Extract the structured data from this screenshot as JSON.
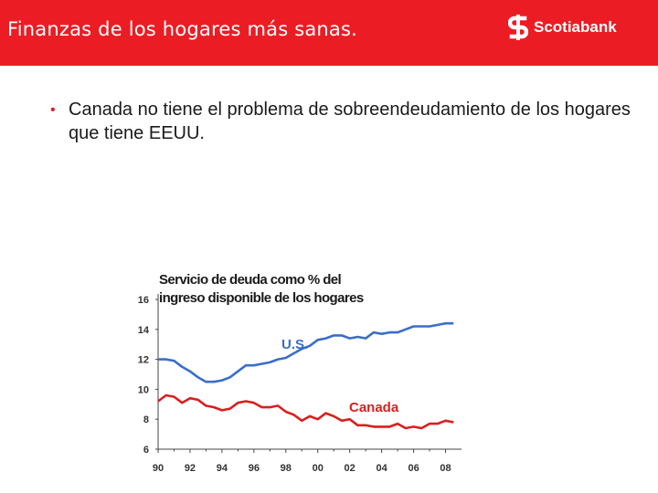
{
  "header": {
    "title": "Finanzas de los hogares más sanas.",
    "brand": "Scotiabank",
    "brand_icon": "scotiabank-logo-icon",
    "background_color": "#ec1c24"
  },
  "bullet": {
    "text": "Canada no tiene el problema de sobreendeudamiento de los hogares que tiene EEUU."
  },
  "chart_data": {
    "type": "line",
    "title_lines": [
      "Servicio de deuda como % del",
      "ingreso disponible de los hogares"
    ],
    "xlabel": "",
    "ylabel": "",
    "xlim": [
      1990,
      2009
    ],
    "ylim": [
      6,
      16
    ],
    "x_ticks": [
      1990,
      1992,
      1994,
      1996,
      1998,
      2000,
      2002,
      2004,
      2006,
      2008
    ],
    "x_tick_labels": [
      "90",
      "92",
      "94",
      "96",
      "98",
      "00",
      "02",
      "04",
      "06",
      "08"
    ],
    "y_ticks": [
      6,
      8,
      10,
      12,
      14,
      16
    ],
    "y_tick_labels": [
      "6",
      "8",
      "10",
      "12",
      "14",
      "16"
    ],
    "grid": false,
    "series": [
      {
        "name": "U.S.",
        "color": "#3a6ec8",
        "x": [
          1990,
          1990.5,
          1991,
          1991.5,
          1992,
          1992.5,
          1993,
          1993.5,
          1994,
          1994.5,
          1995,
          1995.5,
          1996,
          1996.5,
          1997,
          1997.5,
          1998,
          1998.5,
          1999,
          1999.5,
          2000,
          2000.5,
          2001,
          2001.5,
          2002,
          2002.5,
          2003,
          2003.5,
          2004,
          2004.5,
          2005,
          2005.5,
          2006,
          2006.5,
          2007,
          2007.5,
          2008,
          2008.5
        ],
        "values": [
          12.0,
          12.0,
          11.9,
          11.5,
          11.2,
          10.8,
          10.5,
          10.5,
          10.6,
          10.8,
          11.2,
          11.6,
          11.6,
          11.7,
          11.8,
          12.0,
          12.1,
          12.4,
          12.7,
          12.9,
          13.3,
          13.4,
          13.6,
          13.6,
          13.4,
          13.5,
          13.4,
          13.8,
          13.7,
          13.8,
          13.8,
          14.0,
          14.2,
          14.2,
          14.2,
          14.3,
          14.4,
          14.4
        ]
      },
      {
        "name": "Canada",
        "color": "#d91f1f",
        "x": [
          1990,
          1990.5,
          1991,
          1991.5,
          1992,
          1992.5,
          1993,
          1993.5,
          1994,
          1994.5,
          1995,
          1995.5,
          1996,
          1996.5,
          1997,
          1997.5,
          1998,
          1998.5,
          1999,
          1999.5,
          2000,
          2000.5,
          2001,
          2001.5,
          2002,
          2002.5,
          2003,
          2003.5,
          2004,
          2004.5,
          2005,
          2005.5,
          2006,
          2006.5,
          2007,
          2007.5,
          2008,
          2008.5
        ],
        "values": [
          9.2,
          9.6,
          9.5,
          9.1,
          9.4,
          9.3,
          8.9,
          8.8,
          8.6,
          8.7,
          9.1,
          9.2,
          9.1,
          8.8,
          8.8,
          8.9,
          8.5,
          8.3,
          7.9,
          8.2,
          8.0,
          8.4,
          8.2,
          7.9,
          8.0,
          7.6,
          7.6,
          7.5,
          7.5,
          7.5,
          7.7,
          7.4,
          7.5,
          7.4,
          7.7,
          7.7,
          7.9,
          7.8
        ]
      }
    ]
  }
}
